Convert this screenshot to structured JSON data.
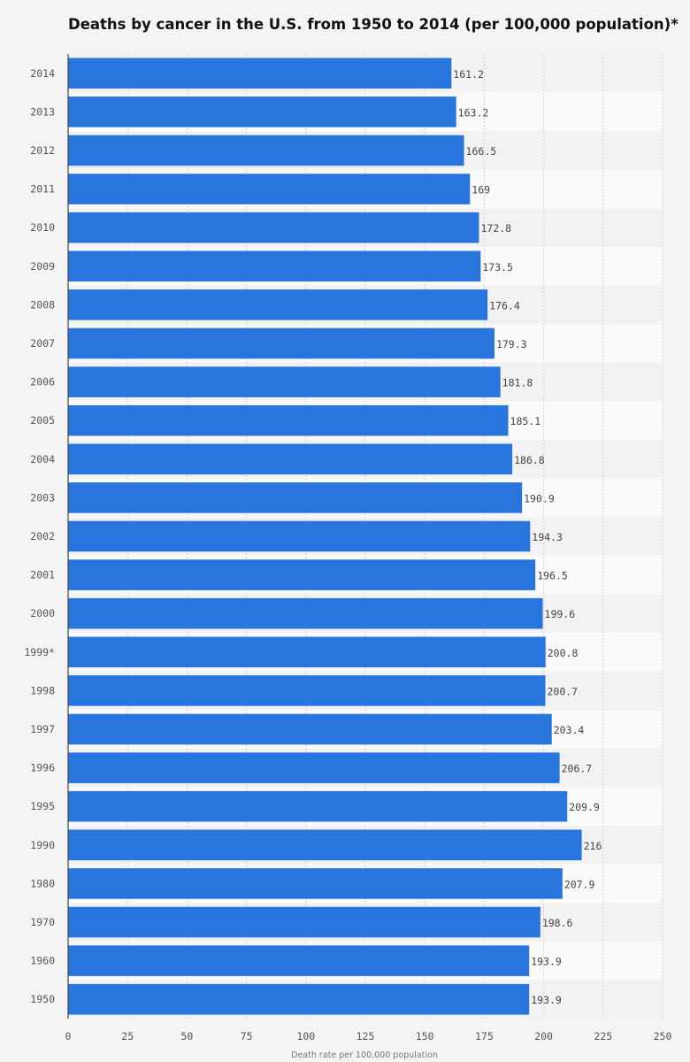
{
  "chart_data": {
    "type": "bar",
    "orientation": "horizontal",
    "title": "Deaths by cancer in the U.S. from 1950 to 2014 (per 100,000 population)*",
    "xlabel": "Death rate per 100,000 population",
    "ylabel": "",
    "xlim": [
      0,
      250
    ],
    "ticks": [
      0,
      25,
      50,
      75,
      100,
      125,
      150,
      175,
      200,
      225,
      250
    ],
    "grid": true,
    "bar_color": "#2876dd",
    "categories": [
      "2014",
      "2013",
      "2012",
      "2011",
      "2010",
      "2009",
      "2008",
      "2007",
      "2006",
      "2005",
      "2004",
      "2003",
      "2002",
      "2001",
      "2000",
      "1999*",
      "1998",
      "1997",
      "1996",
      "1995",
      "1990",
      "1980",
      "1970",
      "1960",
      "1950"
    ],
    "values": [
      161.2,
      163.2,
      166.5,
      169,
      172.8,
      173.5,
      176.4,
      179.3,
      181.8,
      185.1,
      186.8,
      190.9,
      194.3,
      196.5,
      199.6,
      200.8,
      200.7,
      203.4,
      206.7,
      209.9,
      216,
      207.9,
      198.6,
      193.9,
      193.9
    ],
    "value_labels": [
      "161.2",
      "163.2",
      "166.5",
      "169",
      "172.8",
      "173.5",
      "176.4",
      "179.3",
      "181.8",
      "185.1",
      "186.8",
      "190.9",
      "194.3",
      "196.5",
      "199.6",
      "200.8",
      "200.7",
      "203.4",
      "206.7",
      "209.9",
      "216",
      "207.9",
      "198.6",
      "193.9",
      "193.9"
    ]
  }
}
